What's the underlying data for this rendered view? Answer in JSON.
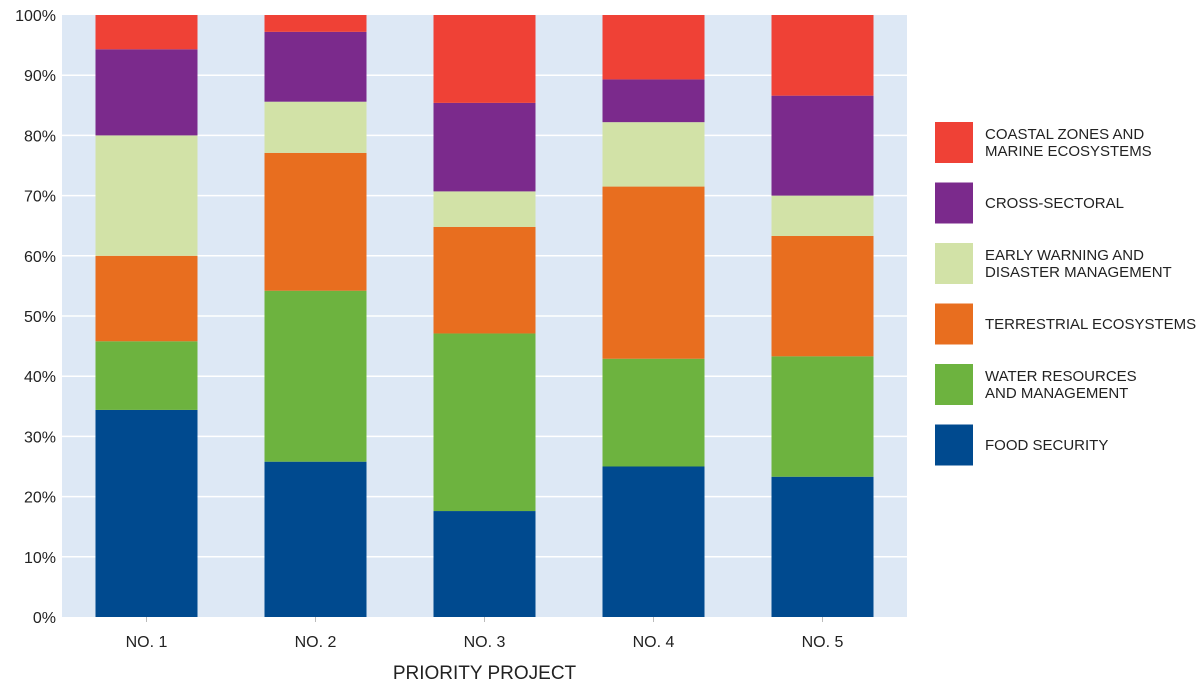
{
  "chart_data": {
    "type": "bar",
    "stacked": true,
    "categories": [
      "NO. 1",
      "NO. 2",
      "NO. 3",
      "NO. 4",
      "NO. 5"
    ],
    "xlabel": "PRIORITY PROJECT",
    "ylabel": "",
    "ylim": [
      0,
      100
    ],
    "yticks": [
      "0%",
      "10%",
      "20%",
      "30%",
      "40%",
      "50%",
      "60%",
      "70%",
      "80%",
      "90%",
      "100%"
    ],
    "grid": true,
    "legend_position": "right",
    "plot_background": "#dde8f5",
    "series": [
      {
        "name": "FOOD SECURITY",
        "legend_lines": [
          "FOOD SECURITY"
        ],
        "color": "#004a8f",
        "values": [
          34.4,
          25.8,
          17.6,
          25.0,
          23.3
        ]
      },
      {
        "name": "WATER RESOURCES AND MANAGEMENT",
        "legend_lines": [
          "WATER RESOURCES",
          "AND MANAGEMENT"
        ],
        "color": "#6db33f",
        "values": [
          11.4,
          28.4,
          29.5,
          17.9,
          20.0
        ]
      },
      {
        "name": "TERRESTRIAL ECOSYSTEMS",
        "legend_lines": [
          "TERRESTRIAL ECOSYSTEMS"
        ],
        "color": "#e86e1f",
        "values": [
          14.2,
          22.9,
          17.7,
          28.6,
          20.0
        ]
      },
      {
        "name": "EARLY WARNING AND DISASTER MANAGEMENT",
        "legend_lines": [
          "EARLY WARNING AND",
          "DISASTER MANAGEMENT"
        ],
        "color": "#d2e2a7",
        "values": [
          20.0,
          8.5,
          5.9,
          10.7,
          6.7
        ]
      },
      {
        "name": "CROSS-SECTORAL",
        "legend_lines": [
          "CROSS-SECTORAL"
        ],
        "color": "#7b2a8c",
        "values": [
          14.3,
          11.6,
          14.7,
          7.1,
          16.6
        ]
      },
      {
        "name": "COASTAL ZONES AND MARINE ECOSYSTEMS",
        "legend_lines": [
          "COASTAL ZONES AND",
          "MARINE ECOSYSTEMS"
        ],
        "color": "#ef4136",
        "values": [
          5.7,
          2.8,
          14.6,
          10.7,
          13.4
        ]
      }
    ]
  }
}
